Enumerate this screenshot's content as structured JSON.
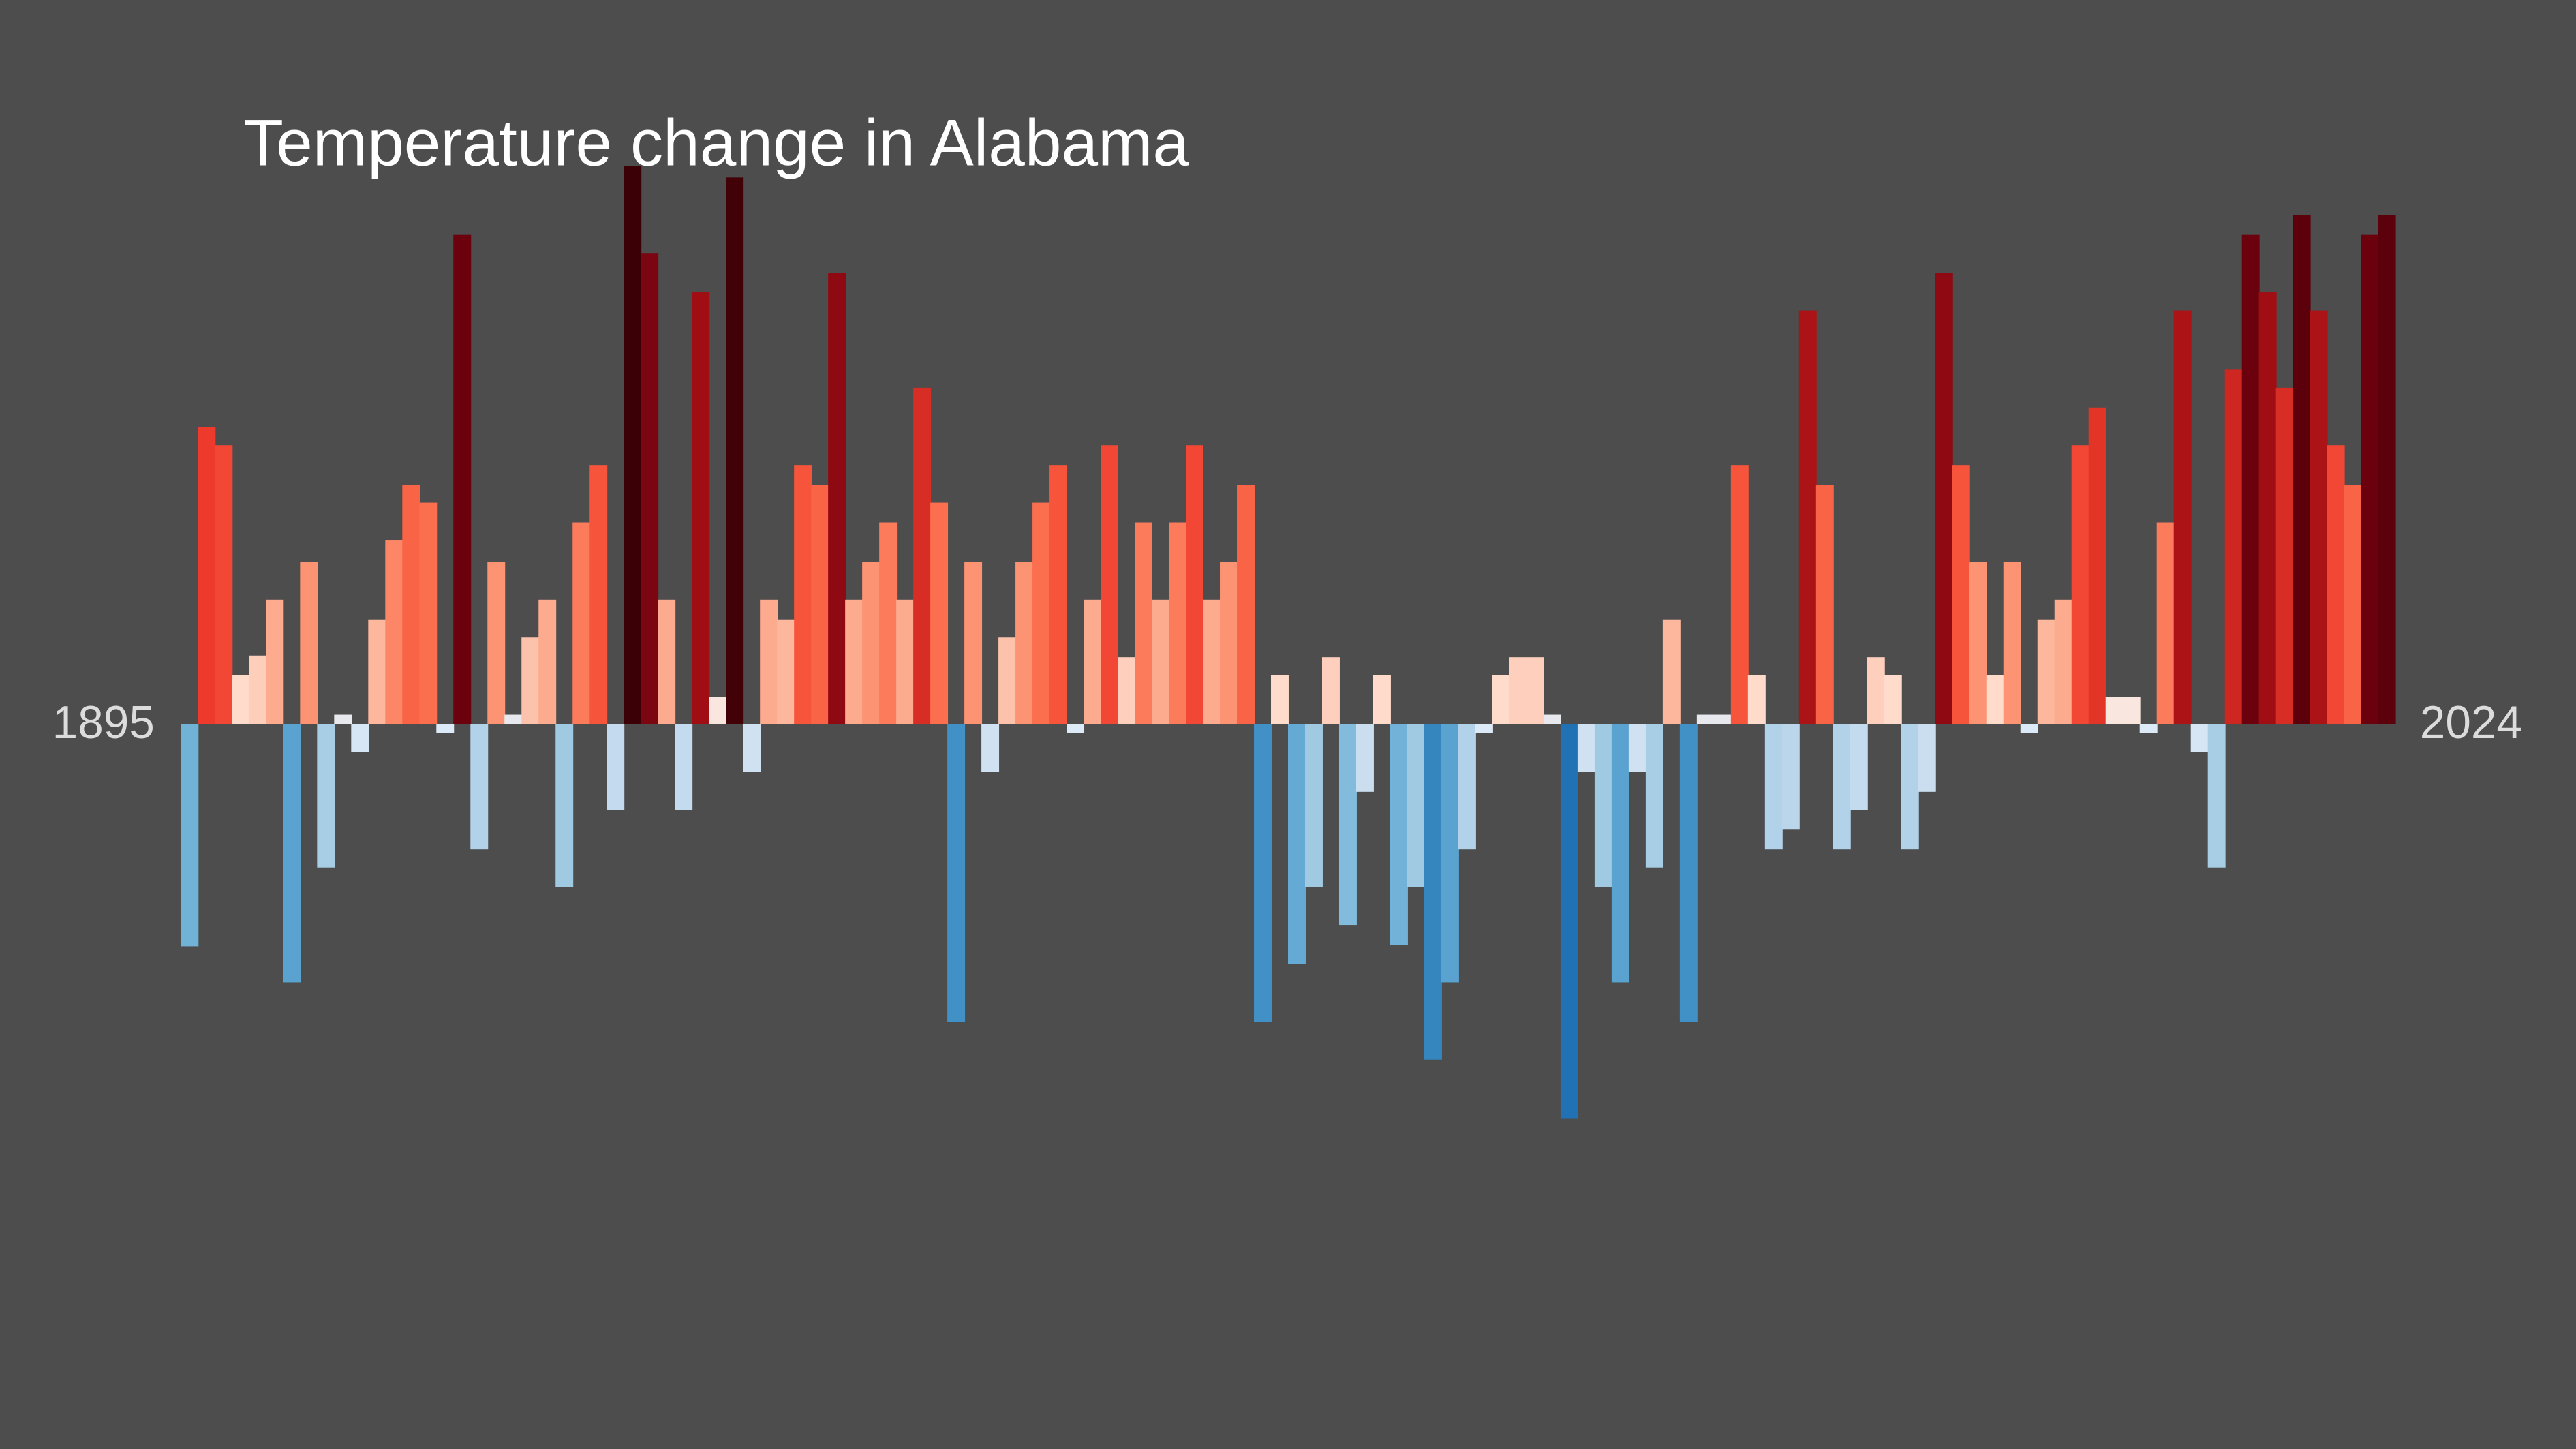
{
  "chart_data": {
    "type": "bar",
    "title": "Temperature change in Alabama",
    "categories": [
      "1895",
      null,
      null,
      null,
      null,
      null,
      null,
      null,
      null,
      null,
      null,
      null,
      null,
      null,
      null,
      null,
      null,
      null,
      null,
      null,
      null,
      null,
      null,
      null,
      null,
      null,
      null,
      null,
      null,
      null,
      null,
      null,
      null,
      null,
      null,
      null,
      null,
      null,
      null,
      null,
      null,
      null,
      null,
      null,
      null,
      null,
      null,
      null,
      null,
      null,
      null,
      null,
      null,
      null,
      null,
      null,
      null,
      null,
      null,
      null,
      null,
      null,
      null,
      null,
      null,
      null,
      null,
      null,
      null,
      null,
      null,
      null,
      null,
      null,
      null,
      null,
      null,
      null,
      null,
      null,
      null,
      null,
      null,
      null,
      null,
      null,
      null,
      null,
      null,
      null,
      null,
      null,
      null,
      null,
      null,
      null,
      null,
      null,
      null,
      null,
      null,
      null,
      null,
      null,
      null,
      null,
      null,
      null,
      null,
      null,
      null,
      null,
      null,
      null,
      null,
      null,
      null,
      null,
      null,
      null,
      null,
      null,
      null,
      null,
      null,
      null,
      null,
      null,
      null,
      "2024"
    ],
    "values": [
      -1.35,
      1.81,
      1.7,
      0.3,
      0.42,
      0.76,
      -1.57,
      0.99,
      -0.87,
      0.06,
      -0.17,
      0.64,
      1.12,
      1.46,
      1.35,
      -0.05,
      2.98,
      -0.76,
      0.99,
      0.06,
      0.53,
      0.76,
      -0.99,
      1.23,
      1.58,
      -0.52,
      3.4,
      2.87,
      0.76,
      -0.52,
      2.63,
      0.17,
      3.33,
      -0.29,
      0.76,
      0.64,
      1.58,
      1.46,
      2.75,
      0.76,
      0.99,
      1.23,
      0.76,
      2.05,
      1.35,
      -1.81,
      0.99,
      -0.29,
      0.53,
      0.99,
      1.35,
      1.58,
      -0.05,
      0.76,
      1.7,
      0.41,
      1.23,
      0.76,
      1.23,
      1.7,
      0.76,
      0.99,
      1.46,
      -1.81,
      0.3,
      -1.46,
      -0.99,
      0.41,
      -1.22,
      -0.41,
      0.3,
      -1.34,
      -0.99,
      -2.04,
      -1.57,
      -0.76,
      -0.05,
      0.3,
      0.41,
      0.41,
      0.06,
      -2.4,
      -0.29,
      -0.99,
      -1.57,
      -0.29,
      -0.87,
      0.64,
      -1.81,
      0.06,
      0.06,
      1.58,
      0.3,
      -0.76,
      -0.64,
      2.52,
      1.46,
      -0.76,
      -0.52,
      0.41,
      0.3,
      -0.76,
      -0.41,
      2.75,
      1.58,
      0.99,
      0.3,
      0.99,
      -0.05,
      0.64,
      0.76,
      1.7,
      1.93,
      0.17,
      0.17,
      -0.05,
      1.23,
      2.52,
      -0.17,
      -0.87,
      2.16,
      2.98,
      2.63,
      2.05,
      3.1,
      2.52,
      1.7,
      1.46,
      2.98,
      3.1
    ],
    "ylim": [
      -4.41,
      4.41
    ],
    "colorscale": [
      [
        -2.4,
        "#2171b5"
      ],
      [
        -1.8,
        "#4292c6"
      ],
      [
        -1.4,
        "#6baed6"
      ],
      [
        -1.0,
        "#9ecae1"
      ],
      [
        -0.5,
        "#c6dbef"
      ],
      [
        0,
        "#deebf7"
      ],
      [
        0.2,
        "#fee5d9"
      ],
      [
        0.6,
        "#fcbba1"
      ],
      [
        1.0,
        "#fc9272"
      ],
      [
        1.4,
        "#fb6a4a"
      ],
      [
        1.8,
        "#ef3b2c"
      ],
      [
        2.6,
        "#a50f15"
      ],
      [
        3.0,
        "#67000d"
      ],
      [
        3.4,
        "#3a0006"
      ]
    ]
  }
}
